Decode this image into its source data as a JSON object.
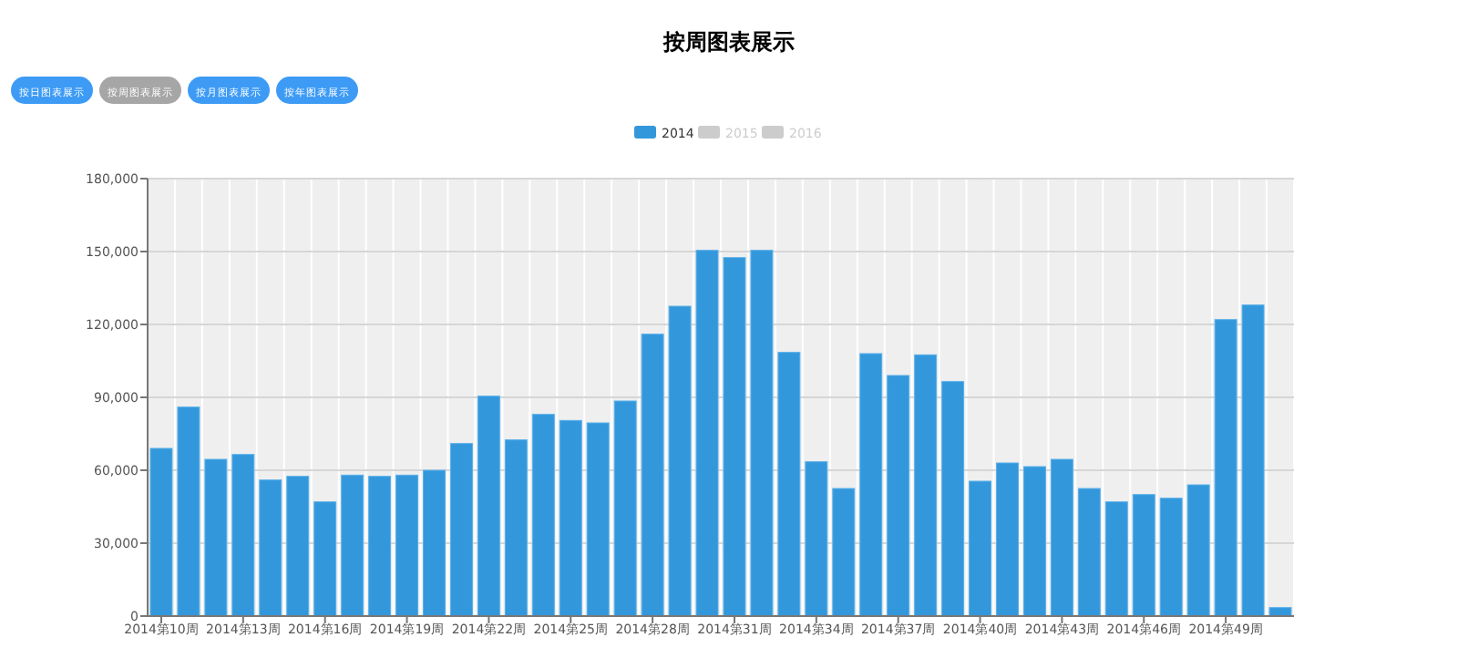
{
  "chart_data": {
    "type": "bar",
    "title": "按周图表展示",
    "annotations": [
      "按日图表展示",
      "按周图表展示",
      "按月图表展示",
      "按年图表展示"
    ],
    "categories": [
      "2014第10周",
      null,
      null,
      "2014第13周",
      null,
      null,
      "2014第16周",
      null,
      null,
      "2014第19周",
      null,
      null,
      "2014第22周",
      null,
      null,
      "2014第25周",
      null,
      null,
      "2014第28周",
      null,
      null,
      "2014第31周",
      null,
      null,
      "2014第34周",
      null,
      null,
      "2014第37周",
      null,
      null,
      "2014第40周",
      null,
      null,
      "2014第43周",
      null,
      null,
      "2014第46周",
      null,
      null,
      "2014第49周",
      null,
      null
    ],
    "series": [
      {
        "name": "2014",
        "color": "#3398db",
        "values": [
          69000,
          86000,
          64500,
          66500,
          56000,
          57500,
          47000,
          58000,
          57500,
          58000,
          60000,
          71000,
          90500,
          72500,
          83000,
          80500,
          79500,
          88500,
          116000,
          127500,
          150500,
          147500,
          150500,
          108500,
          63500,
          52500,
          108000,
          99000,
          107500,
          96500,
          55500,
          63000,
          61500,
          64500,
          52500,
          47000,
          50000,
          48500,
          54000,
          122000,
          128000,
          3500
        ]
      },
      {
        "name": "2015",
        "color": "#cccccc",
        "values": [
          null,
          null,
          null,
          null,
          null,
          null,
          null,
          null,
          null,
          null,
          null,
          null,
          null,
          null,
          null,
          null,
          null,
          null,
          null,
          null,
          null,
          null,
          null,
          null,
          null,
          null,
          null,
          null,
          null,
          null,
          null,
          null,
          null,
          null,
          null,
          null,
          null,
          null,
          null,
          null,
          null,
          null
        ]
      },
      {
        "name": "2016",
        "color": "#cccccc",
        "values": [
          null,
          null,
          null,
          null,
          null,
          null,
          null,
          null,
          null,
          null,
          null,
          null,
          null,
          null,
          null,
          null,
          null,
          null,
          null,
          null,
          null,
          null,
          null,
          null,
          null,
          null,
          null,
          null,
          null,
          null,
          null,
          null,
          null,
          null,
          null,
          null,
          null,
          null,
          null,
          null,
          null,
          null
        ]
      }
    ],
    "ylim": [
      0,
      180000
    ],
    "yticks": [
      0,
      {
        "value": 30000,
        "label": "30,000"
      },
      {
        "value": 60000,
        "label": "60,000"
      },
      {
        "value": 90000,
        "label": "90,000"
      },
      {
        "value": 120000,
        "label": "120,000"
      },
      {
        "value": 150000,
        "label": "150,000"
      },
      {
        "value": 180000,
        "label": "180,000"
      }
    ],
    "grid": "y",
    "legend": "top"
  }
}
